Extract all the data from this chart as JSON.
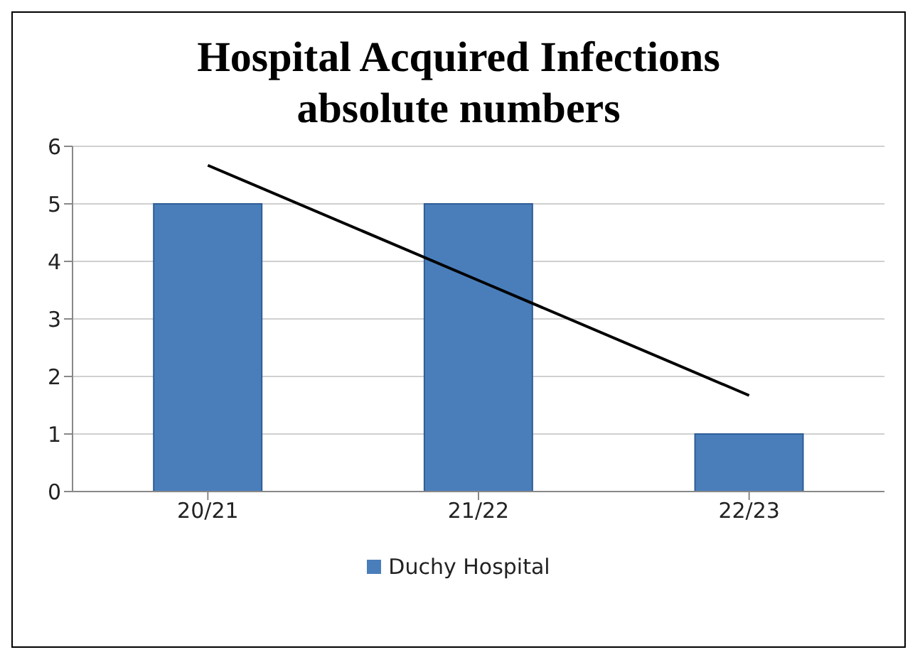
{
  "chart_data": {
    "type": "bar",
    "title": "Hospital Acquired Infections absolute numbers",
    "categories": [
      "20/21",
      "21/22",
      "22/23"
    ],
    "series": [
      {
        "name": "Duchy Hospital",
        "color": "#4a7ebb",
        "values": [
          5,
          5,
          1
        ]
      },
      {
        "type": "line",
        "color": "#000000",
        "x": [
          "20/21",
          "21/22",
          "22/23"
        ],
        "values": [
          5.67,
          3.67,
          1.67
        ]
      }
    ],
    "ylim": [
      0,
      6
    ],
    "yticks": [
      0,
      1,
      2,
      3,
      4,
      5,
      6
    ],
    "grid": "y",
    "legend": "bottom",
    "marker": "none"
  }
}
